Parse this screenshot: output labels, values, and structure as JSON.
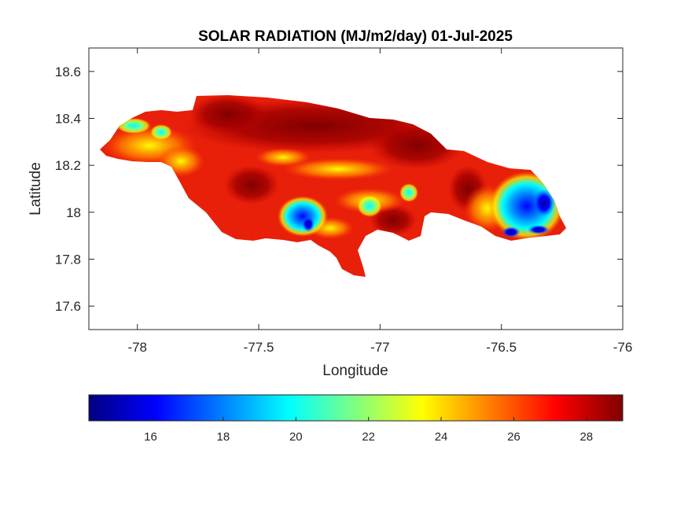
{
  "title": "SOLAR RADIATION (MJ/m2/day) 01-Jul-2025",
  "map": {
    "xlabel": "Longitude",
    "ylabel": "Latitude",
    "xlim": [
      -78.2,
      -76
    ],
    "ylim": [
      17.5,
      18.7
    ],
    "xticks": [
      -78,
      -77.5,
      -77,
      -76.5,
      -76
    ],
    "xtick_labels": [
      "-78",
      "-77.5",
      "-77",
      "-76.5",
      "-76"
    ],
    "yticks": [
      17.6,
      17.8,
      18,
      18.2,
      18.4,
      18.6
    ],
    "ytick_labels": [
      "17.6",
      "17.8",
      "18",
      "18.2",
      "18.4",
      "18.6"
    ],
    "region": "Jamaica",
    "colormap": "jet",
    "field_summary": [
      {
        "area": "northern interior",
        "value": 28.5
      },
      {
        "area": "north-west coast",
        "value": 24
      },
      {
        "area": "south-central lowland",
        "value": 18
      },
      {
        "area": "south-east (Blue Mountains)",
        "value": 16.5
      },
      {
        "area": "central",
        "value": 26.5
      }
    ]
  },
  "colorbar": {
    "orientation": "horizontal",
    "range": [
      14.3,
      29
    ],
    "ticks": [
      16,
      18,
      20,
      22,
      24,
      26,
      28
    ],
    "tick_labels": [
      "16",
      "18",
      "20",
      "22",
      "24",
      "26",
      "28"
    ],
    "colors": [
      "#000080",
      "#0000ff",
      "#0080ff",
      "#00ffff",
      "#80ff80",
      "#ffff00",
      "#ff8000",
      "#ff0000",
      "#800000"
    ]
  }
}
